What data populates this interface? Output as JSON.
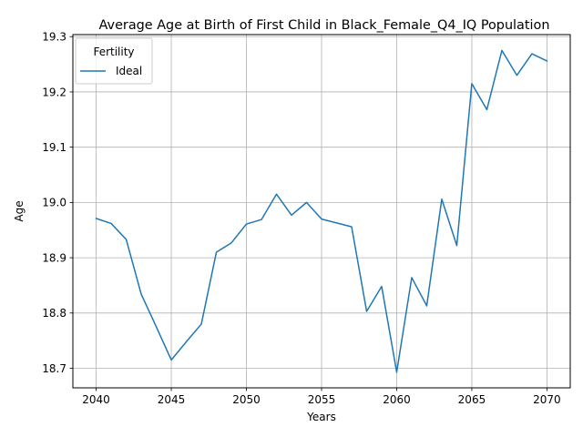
{
  "chart_data": {
    "type": "line",
    "title": "Average Age at Birth of First Child in Black_Female_Q4_IQ Population",
    "xlabel": "Years",
    "ylabel": "Age",
    "xlim": [
      2038.45,
      2071.55
    ],
    "ylim": [
      18.6646,
      19.3037
    ],
    "xticks": [
      2040,
      2045,
      2050,
      2055,
      2060,
      2065,
      2070
    ],
    "yticks": [
      18.7,
      18.8,
      18.9,
      19.0,
      19.1,
      19.2,
      19.3
    ],
    "grid": true,
    "legend": {
      "title": "Fertility",
      "placement": "top-left"
    },
    "series": [
      {
        "name": "Ideal",
        "color": "#1f77b4",
        "x": [
          2040,
          2041,
          2042,
          2043,
          2044,
          2045,
          2046,
          2047,
          2048,
          2049,
          2050,
          2051,
          2052,
          2053,
          2054,
          2055,
          2056,
          2057,
          2058,
          2059,
          2060,
          2061,
          2062,
          2063,
          2064,
          2065,
          2066,
          2067,
          2068,
          2069,
          2070
        ],
        "y": [
          18.971,
          18.962,
          18.933,
          18.834,
          18.775,
          18.715,
          18.748,
          18.78,
          18.91,
          18.927,
          18.961,
          18.969,
          19.015,
          18.977,
          19.0,
          18.97,
          18.963,
          18.956,
          18.803,
          18.848,
          18.693,
          18.864,
          18.813,
          19.006,
          18.922,
          19.215,
          19.168,
          19.275,
          19.23,
          19.269,
          19.256
        ]
      }
    ]
  }
}
